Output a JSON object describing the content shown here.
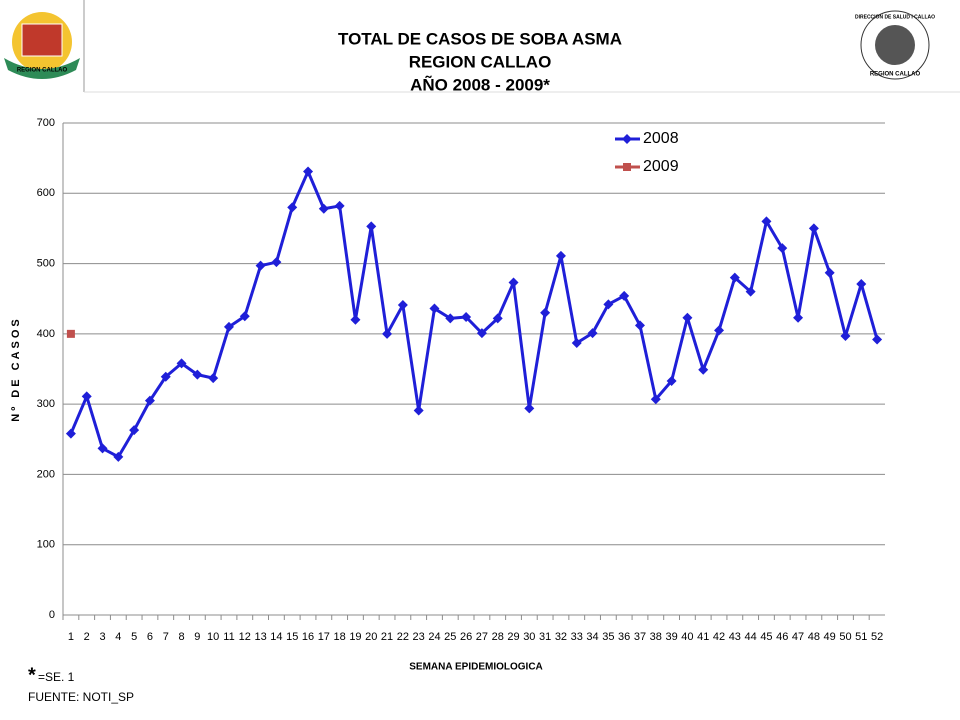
{
  "chart_data": {
    "type": "line",
    "title": [
      "TOTAL DE CASOS DE SOBA ASMA",
      "REGION  CALLAO",
      "AÑO 2008 - 2009*"
    ],
    "ylabel": "Nº DE CASOS",
    "xlabel": "SEMANA EPIDEMIOLOGICA",
    "categories": [
      "1",
      "2",
      "3",
      "4",
      "5",
      "6",
      "7",
      "8",
      "9",
      "10",
      "11",
      "12",
      "13",
      "14",
      "15",
      "16",
      "17",
      "18",
      "19",
      "20",
      "21",
      "22",
      "23",
      "24",
      "25",
      "26",
      "27",
      "28",
      "29",
      "30",
      "31",
      "32",
      "33",
      "34",
      "35",
      "36",
      "37",
      "38",
      "39",
      "40",
      "41",
      "42",
      "43",
      "44",
      "45",
      "46",
      "47",
      "48",
      "49",
      "50",
      "51",
      "52"
    ],
    "series": [
      {
        "name": "2008",
        "color": "#1f1fd8",
        "marker": "diamond",
        "values": [
          258,
          311,
          237,
          225,
          263,
          305,
          339,
          358,
          342,
          337,
          410,
          425,
          497,
          502,
          580,
          631,
          578,
          582,
          420,
          553,
          400,
          441,
          291,
          436,
          422,
          424,
          401,
          422,
          473,
          294,
          430,
          511,
          387,
          401,
          442,
          454,
          412,
          307,
          333,
          423,
          349,
          405,
          480,
          460,
          560,
          522,
          423,
          550,
          487,
          397,
          471,
          392
        ]
      },
      {
        "name": "2009",
        "color": "#c0504d",
        "marker": "square",
        "values": [
          400,
          null,
          null,
          null,
          null,
          null,
          null,
          null,
          null,
          null,
          null,
          null,
          null,
          null,
          null,
          null,
          null,
          null,
          null,
          null,
          null,
          null,
          null,
          null,
          null,
          null,
          null,
          null,
          null,
          null,
          null,
          null,
          null,
          null,
          null,
          null,
          null,
          null,
          null,
          null,
          null,
          null,
          null,
          null,
          null,
          null,
          null,
          null,
          null,
          null,
          null,
          null
        ]
      }
    ],
    "ylim": [
      0,
      700
    ],
    "yticks": [
      0,
      100,
      200,
      300,
      400,
      500,
      600,
      700
    ],
    "grid": true,
    "legend": "top-right",
    "footnote_mark": "*",
    "footnote": "=SE. 1",
    "source": "FUENTE: NOTI_SP"
  },
  "logos": {
    "left": "REGION CALLAO",
    "right_top": "DIRECCION DE SALUD I CALLAO",
    "right_bottom": "REGION CALLAO"
  }
}
